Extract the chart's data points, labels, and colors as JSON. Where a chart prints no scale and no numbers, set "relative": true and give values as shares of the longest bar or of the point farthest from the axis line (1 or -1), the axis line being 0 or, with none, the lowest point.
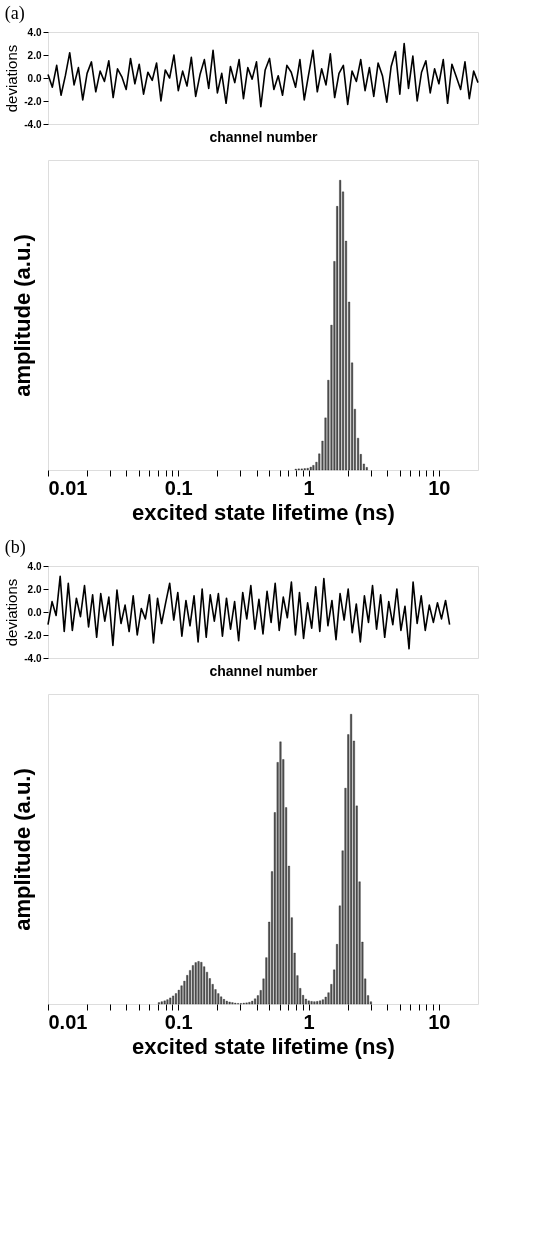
{
  "chart_data": [
    {
      "type": "line",
      "title": "(a)",
      "ylabel": "deviations",
      "xlabel": "channel number",
      "tick_labels": "y",
      "ylim": [
        -4,
        4
      ],
      "yticks": [
        {
          "value": 4,
          "label": "4.0"
        },
        {
          "value": 2,
          "label": "2.0"
        },
        {
          "value": 0,
          "label": "0.0"
        },
        {
          "value": -2,
          "label": "-2.0"
        },
        {
          "value": -4,
          "label": "-4.0"
        }
      ],
      "categories": [
        null,
        null,
        null,
        null,
        null,
        null,
        null,
        null,
        null,
        null,
        null,
        null,
        null,
        null,
        null,
        null,
        null,
        null,
        null,
        null,
        null,
        null,
        null,
        null,
        null,
        null,
        null,
        null,
        null,
        null,
        null,
        null,
        null,
        null,
        null,
        null,
        null,
        null,
        null,
        null,
        null,
        null,
        null,
        null,
        null,
        null,
        null,
        null,
        null,
        null,
        null,
        null,
        null,
        null,
        null,
        null,
        null,
        null,
        null,
        null,
        null,
        null,
        null,
        null,
        null,
        null,
        null,
        null,
        null,
        null,
        null,
        null,
        null,
        null,
        null,
        null,
        null,
        null,
        null,
        null,
        null,
        null,
        null,
        null,
        null,
        null,
        null,
        null,
        null,
        null,
        null,
        null,
        null,
        null,
        null,
        null,
        null,
        null,
        null,
        null
      ],
      "series": [
        {
          "color": "#000000",
          "values": [
            0.3,
            -0.8,
            1.1,
            -1.5,
            0.2,
            2.2,
            -0.6,
            0.9,
            -1.9,
            0.4,
            1.4,
            -1.2,
            0.6,
            -0.3,
            1.5,
            -1.7,
            0.8,
            0.1,
            -1.0,
            1.7,
            -0.5,
            1.2,
            -1.4,
            0.5,
            -0.2,
            1.3,
            -2.0,
            0.7,
            0.0,
            2.0,
            -1.1,
            0.6,
            -0.7,
            1.8,
            -1.6,
            0.3,
            1.6,
            -0.9,
            2.4,
            -1.3,
            0.4,
            -2.2,
            1.0,
            -0.4,
            1.6,
            -1.8,
            0.9,
            -0.1,
            1.4,
            -2.5,
            0.7,
            1.7,
            -1.0,
            0.2,
            -1.5,
            1.1,
            0.5,
            -0.8,
            1.6,
            -1.9,
            0.3,
            2.4,
            -1.2,
            0.8,
            -0.6,
            2.1,
            -1.7,
            0.4,
            1.1,
            -2.3,
            0.6,
            -0.3,
            1.6,
            -1.1,
            0.9,
            -1.6,
            1.3,
            0.2,
            -2.1,
            1.0,
            2.3,
            -1.4,
            3.0,
            -0.9,
            1.9,
            -2.0,
            0.5,
            1.5,
            -1.3,
            0.8,
            -0.5,
            1.6,
            -2.2,
            1.2,
            0.1,
            -1.0,
            1.4,
            -1.8,
            0.6,
            -0.4
          ]
        }
      ]
    },
    {
      "type": "bar",
      "relative": true,
      "log": "x",
      "ylabel": "amplitude    (a.u.)",
      "xlabel": "excited state lifetime    (ns)",
      "xlim": [
        0.01,
        20
      ],
      "xticks": [
        {
          "value": 0.01,
          "label": "0.01"
        },
        {
          "value": 0.02,
          "label": null
        },
        {
          "value": 0.03,
          "label": null
        },
        {
          "value": 0.04,
          "label": null
        },
        {
          "value": 0.05,
          "label": null
        },
        {
          "value": 0.06,
          "label": null
        },
        {
          "value": 0.07,
          "label": null
        },
        {
          "value": 0.08,
          "label": null
        },
        {
          "value": 0.09,
          "label": null
        },
        {
          "value": 0.1,
          "label": "0.1"
        },
        {
          "value": 0.2,
          "label": null
        },
        {
          "value": 0.3,
          "label": null
        },
        {
          "value": 0.4,
          "label": null
        },
        {
          "value": 0.5,
          "label": null
        },
        {
          "value": 0.6,
          "label": null
        },
        {
          "value": 0.7,
          "label": null
        },
        {
          "value": 0.8,
          "label": null
        },
        {
          "value": 0.9,
          "label": null
        },
        1,
        {
          "value": 2,
          "label": null
        },
        {
          "value": 3,
          "label": null
        },
        {
          "value": 4,
          "label": null
        },
        {
          "value": 5,
          "label": null
        },
        {
          "value": 6,
          "label": null
        },
        {
          "value": 7,
          "label": null
        },
        {
          "value": 8,
          "label": null
        },
        {
          "value": 9,
          "label": null
        },
        10
      ],
      "x": [
        0.798,
        0.841,
        0.887,
        0.935,
        0.985,
        1.04,
        1.09,
        1.15,
        1.21,
        1.28,
        1.35,
        1.42,
        1.5,
        1.58,
        1.66,
        1.75,
        1.84,
        1.94,
        2.05,
        2.16,
        2.27,
        2.4,
        2.52,
        2.66,
        2.8
      ],
      "series": [
        {
          "color": "#555555",
          "values": [
            0.003,
            0.004,
            0.004,
            0.005,
            0.006,
            0.01,
            0.016,
            0.027,
            0.056,
            0.1,
            0.18,
            0.31,
            0.5,
            0.72,
            0.91,
            1.0,
            0.96,
            0.79,
            0.58,
            0.37,
            0.21,
            0.11,
            0.054,
            0.021,
            0.009
          ]
        }
      ]
    },
    {
      "type": "line",
      "title": "(b)",
      "ylabel": "deviations",
      "xlabel": "channel number",
      "tick_labels": "y",
      "ylim": [
        -4,
        4
      ],
      "yticks": [
        {
          "value": 4,
          "label": "4.0"
        },
        {
          "value": 2,
          "label": "2.0"
        },
        {
          "value": 0,
          "label": "0.0"
        },
        {
          "value": -2,
          "label": "-2.0"
        },
        {
          "value": -4,
          "label": "-4.0"
        }
      ],
      "categories": [
        null,
        null,
        null,
        null,
        null,
        null,
        null,
        null,
        null,
        null,
        null,
        null,
        null,
        null,
        null,
        null,
        null,
        null,
        null,
        null,
        null,
        null,
        null,
        null,
        null,
        null,
        null,
        null,
        null,
        null,
        null,
        null,
        null,
        null,
        null,
        null,
        null,
        null,
        null,
        null,
        null,
        null,
        null,
        null,
        null,
        null,
        null,
        null,
        null,
        null,
        null,
        null,
        null,
        null,
        null,
        null,
        null,
        null,
        null,
        null,
        null,
        null,
        null,
        null,
        null,
        null,
        null,
        null,
        null,
        null,
        null,
        null,
        null,
        null,
        null,
        null,
        null,
        null,
        null,
        null,
        null,
        null,
        null,
        null,
        null,
        null,
        null,
        null,
        null,
        null,
        null,
        null,
        null,
        null,
        null,
        null,
        null,
        null,
        null,
        null,
        null,
        null,
        null,
        null,
        null,
        null,
        null
      ],
      "series": [
        {
          "color": "#000000",
          "values": [
            -1.1,
            0.9,
            -0.3,
            3.1,
            -1.7,
            2.5,
            -1.6,
            1.2,
            -0.4,
            2.3,
            -1.3,
            1.5,
            -2.2,
            1.6,
            -0.8,
            1.3,
            -2.9,
            1.9,
            -1.0,
            0.6,
            -1.7,
            1.4,
            -2.0,
            0.3,
            -0.6,
            1.5,
            -2.7,
            1.2,
            -1.0,
            0.8,
            2.5,
            -0.7,
            1.7,
            -2.1,
            1.0,
            -1.2,
            1.4,
            -2.6,
            2.0,
            -2.2,
            1.5,
            -0.8,
            1.6,
            -2.1,
            1.2,
            -1.5,
            0.9,
            -2.5,
            1.7,
            -0.6,
            2.3,
            -1.5,
            1.1,
            -1.9,
            1.8,
            -0.9,
            2.5,
            -1.6,
            1.3,
            -0.5,
            2.6,
            -2.0,
            1.7,
            -2.3,
            0.8,
            -1.4,
            2.2,
            -1.7,
            2.9,
            -1.2,
            1.0,
            -2.4,
            1.6,
            -0.7,
            2.0,
            -1.8,
            0.7,
            -2.6,
            1.4,
            -0.9,
            2.3,
            -1.5,
            1.5,
            -2.2,
            0.9,
            -1.1,
            2.0,
            -1.6,
            0.5,
            -3.2,
            2.6,
            -1.0,
            1.4,
            -1.6,
            0.6,
            -0.9,
            0.8,
            -0.6,
            1.0,
            -1.1,
            null,
            null,
            null,
            null,
            null,
            null,
            null
          ]
        }
      ]
    },
    {
      "type": "bar",
      "relative": true,
      "log": "x",
      "ylabel": "amplitude    (a.u.)",
      "xlabel": "excited state lifetime    (ns)",
      "xlim": [
        0.01,
        20
      ],
      "xticks": [
        {
          "value": 0.01,
          "label": "0.01"
        },
        {
          "value": 0.02,
          "label": null
        },
        {
          "value": 0.03,
          "label": null
        },
        {
          "value": 0.04,
          "label": null
        },
        {
          "value": 0.05,
          "label": null
        },
        {
          "value": 0.06,
          "label": null
        },
        {
          "value": 0.07,
          "label": null
        },
        {
          "value": 0.08,
          "label": null
        },
        {
          "value": 0.09,
          "label": null
        },
        {
          "value": 0.1,
          "label": "0.1"
        },
        {
          "value": 0.2,
          "label": null
        },
        {
          "value": 0.3,
          "label": null
        },
        {
          "value": 0.4,
          "label": null
        },
        {
          "value": 0.5,
          "label": null
        },
        {
          "value": 0.6,
          "label": null
        },
        {
          "value": 0.7,
          "label": null
        },
        {
          "value": 0.8,
          "label": null
        },
        {
          "value": 0.9,
          "label": null
        },
        1,
        {
          "value": 2,
          "label": null
        },
        {
          "value": 3,
          "label": null
        },
        {
          "value": 4,
          "label": null
        },
        {
          "value": 5,
          "label": null
        },
        {
          "value": 6,
          "label": null
        },
        {
          "value": 7,
          "label": null
        },
        {
          "value": 8,
          "label": null
        },
        {
          "value": 9,
          "label": null
        },
        10
      ],
      "x": [
        0.0711,
        0.0747,
        0.0786,
        0.0826,
        0.0868,
        0.0913,
        0.096,
        0.1009,
        0.106,
        0.1115,
        0.1172,
        0.1232,
        0.1295,
        0.1361,
        0.1431,
        0.1504,
        0.1581,
        0.1662,
        0.1747,
        0.1837,
        0.1931,
        0.203,
        0.2134,
        0.2243,
        0.2358,
        0.2479,
        0.2606,
        0.2739,
        0.288,
        0.3027,
        0.3182,
        0.3345,
        0.3517,
        0.3697,
        0.3886,
        0.4085,
        0.4294,
        0.4514,
        0.4745,
        0.4988,
        0.5244,
        0.5512,
        0.5795,
        0.6091,
        0.6403,
        0.6731,
        0.7076,
        0.7438,
        0.7819,
        0.822,
        0.8641,
        0.9083,
        0.9548,
        1.0037,
        1.0551,
        1.1092,
        1.166,
        1.2257,
        1.2885,
        1.3544,
        1.4238,
        1.4967,
        1.5733,
        1.6539,
        1.7386,
        1.8276,
        1.9212,
        2.0195,
        2.1229,
        2.2316,
        2.3459,
        2.466,
        2.5923,
        2.725,
        2.8645,
        3.0112
      ],
      "series": [
        {
          "color": "#555555",
          "values": [
            0.005,
            0.008,
            0.011,
            0.015,
            0.021,
            0.028,
            0.036,
            0.048,
            0.063,
            0.079,
            0.099,
            0.116,
            0.133,
            0.143,
            0.147,
            0.144,
            0.129,
            0.11,
            0.088,
            0.068,
            0.05,
            0.036,
            0.025,
            0.016,
            0.01,
            0.007,
            0.005,
            0.003,
            0.002,
            0.002,
            0.003,
            0.004,
            0.006,
            0.01,
            0.018,
            0.029,
            0.047,
            0.087,
            0.16,
            0.283,
            0.457,
            0.661,
            0.834,
            0.905,
            0.844,
            0.678,
            0.476,
            0.298,
            0.176,
            0.098,
            0.054,
            0.03,
            0.017,
            0.011,
            0.009,
            0.008,
            0.009,
            0.011,
            0.015,
            0.024,
            0.039,
            0.068,
            0.118,
            0.206,
            0.339,
            0.529,
            0.745,
            0.93,
            1.0,
            0.908,
            0.684,
            0.422,
            0.214,
            0.087,
            0.029,
            0.008
          ]
        }
      ]
    }
  ]
}
